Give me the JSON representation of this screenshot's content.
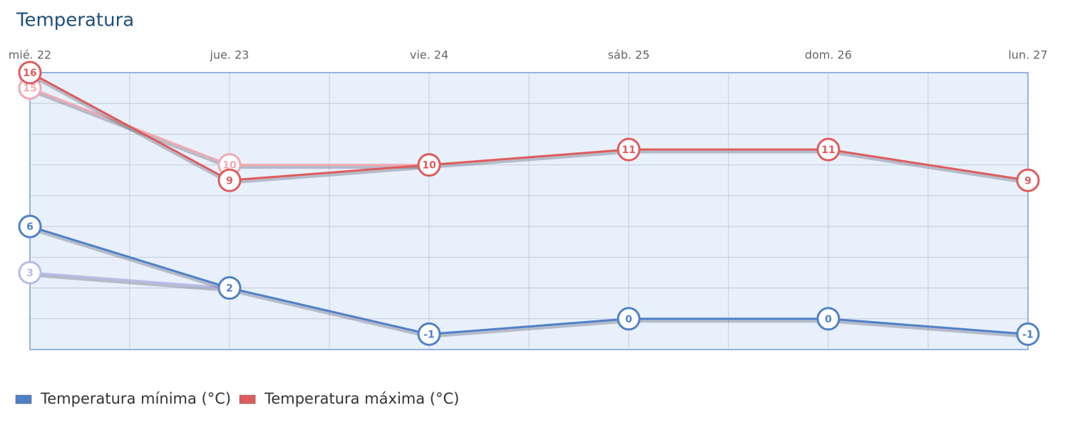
{
  "chart_data": {
    "type": "line",
    "title": "Temperatura",
    "categories": [
      "mié. 22",
      "jue. 23",
      "vie. 24",
      "sáb. 25",
      "dom. 26",
      "lun. 27"
    ],
    "series": [
      {
        "name": "Temperatura mínima (°C)",
        "color": "#4f81c7",
        "values": [
          6,
          2,
          -1,
          0,
          0,
          -1
        ]
      },
      {
        "name": "Temperatura máxima (°C)",
        "color": "#de5c5c",
        "values": [
          16,
          9,
          10,
          11,
          11,
          9
        ]
      }
    ],
    "previous": [
      {
        "color": "#b7bce8",
        "values": [
          3,
          2,
          null,
          null,
          null,
          null
        ]
      },
      {
        "color": "#f2aab2",
        "values": [
          15,
          10,
          10,
          null,
          null,
          null
        ]
      }
    ],
    "ylim": [
      -2,
      16
    ],
    "yticks": [
      0,
      2,
      4,
      6,
      8,
      10,
      12,
      14
    ],
    "grid": true
  }
}
